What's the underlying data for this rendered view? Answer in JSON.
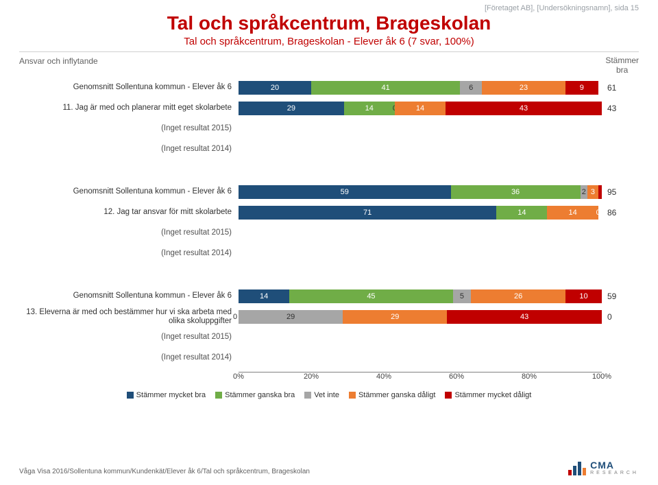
{
  "header_right": "[Företaget AB], [Undersökningsnamn], sida 15",
  "title": "Tal och språkcentrum, Brageskolan",
  "subtitle": "Tal och språkcentrum, Brageskolan - Elever åk 6 (7 svar, 100%)",
  "section_label": "Ansvar och inflytande",
  "score_header_top": "Stämmer",
  "score_header_bot": "bra",
  "colors": {
    "c1": "#1f4e79",
    "c2": "#70ad47",
    "c3": "#a6a6a6",
    "c4": "#ed7d31",
    "c5": "#c00000",
    "brand": "#c00000",
    "bg": "#ffffff"
  },
  "rows": [
    {
      "label": "Genomsnitt Sollentuna kommun - Elever åk 6",
      "score": "61",
      "segs": [
        {
          "v": 20,
          "c": "c1",
          "t": "#ffffff"
        },
        {
          "v": 41,
          "c": "c2",
          "t": "#ffffff"
        },
        {
          "v": 6,
          "c": "c3",
          "t": "#303030"
        },
        {
          "v": 23,
          "c": "c4",
          "t": "#ffffff"
        },
        {
          "v": 9,
          "c": "c5",
          "t": "#ffffff"
        }
      ]
    },
    {
      "label": "11. Jag är med och planerar mitt eget skolarbete",
      "score": "43",
      "segs": [
        {
          "v": 29,
          "c": "c1",
          "t": "#ffffff"
        },
        {
          "v": 14,
          "c": "c2",
          "t": "#ffffff"
        },
        {
          "v": 0,
          "c": "c3",
          "t": "#303030",
          "show": "0"
        },
        {
          "v": 14,
          "c": "c4",
          "t": "#ffffff"
        },
        {
          "v": 43,
          "c": "c5",
          "t": "#ffffff"
        }
      ]
    },
    {
      "label": "(Inget resultat 2015)",
      "noresult": true
    },
    {
      "label": "(Inget resultat 2014)",
      "noresult": true
    },
    {
      "gap": true
    },
    {
      "label": "Genomsnitt Sollentuna kommun - Elever åk 6",
      "score": "95",
      "segs": [
        {
          "v": 59,
          "c": "c1",
          "t": "#ffffff"
        },
        {
          "v": 36,
          "c": "c2",
          "t": "#ffffff"
        },
        {
          "v": 2,
          "c": "c3",
          "t": "#303030"
        },
        {
          "v": 3,
          "c": "c4",
          "t": "#ffffff"
        },
        {
          "v": 1,
          "c": "c5",
          "t": "#ffffff",
          "hide": true
        }
      ]
    },
    {
      "label": "12. Jag tar ansvar för mitt skolarbete",
      "score": "86",
      "segs": [
        {
          "v": 71,
          "c": "c1",
          "t": "#ffffff"
        },
        {
          "v": 14,
          "c": "c2",
          "t": "#ffffff"
        },
        {
          "v": 14,
          "c": "c4",
          "t": "#ffffff"
        },
        {
          "v": 0,
          "c": "c5",
          "t": "#ffffff",
          "show": "0"
        }
      ]
    },
    {
      "label": "(Inget resultat 2015)",
      "noresult": true
    },
    {
      "label": "(Inget resultat 2014)",
      "noresult": true
    },
    {
      "gap": true
    },
    {
      "label": "Genomsnitt Sollentuna kommun - Elever åk 6",
      "score": "59",
      "segs": [
        {
          "v": 14,
          "c": "c1",
          "t": "#ffffff"
        },
        {
          "v": 45,
          "c": "c2",
          "t": "#ffffff"
        },
        {
          "v": 5,
          "c": "c3",
          "t": "#303030"
        },
        {
          "v": 26,
          "c": "c4",
          "t": "#ffffff"
        },
        {
          "v": 10,
          "c": "c5",
          "t": "#ffffff"
        }
      ]
    },
    {
      "label": "13. Eleverna är med och bestämmer hur vi ska arbeta med olika skoluppgifter",
      "score": "0",
      "segs": [
        {
          "v": 0,
          "c": "c1",
          "t": "#ffffff",
          "hide": true
        },
        {
          "v": 0,
          "c": "c2",
          "t": "#ffffff",
          "show": "0",
          "offset": true
        },
        {
          "v": 29,
          "c": "c3",
          "t": "#303030"
        },
        {
          "v": 29,
          "c": "c4",
          "t": "#ffffff"
        },
        {
          "v": 43,
          "c": "c5",
          "t": "#ffffff"
        }
      ]
    },
    {
      "label": "(Inget resultat 2015)",
      "noresult": true
    },
    {
      "label": "(Inget resultat 2014)",
      "noresult": true
    }
  ],
  "axis": [
    "0%",
    "20%",
    "40%",
    "60%",
    "80%",
    "100%"
  ],
  "legend": [
    {
      "c": "c1",
      "t": "Stämmer mycket bra"
    },
    {
      "c": "c2",
      "t": "Stämmer ganska bra"
    },
    {
      "c": "c3",
      "t": "Vet inte"
    },
    {
      "c": "c4",
      "t": "Stämmer ganska dåligt"
    },
    {
      "c": "c5",
      "t": "Stämmer mycket dåligt"
    }
  ],
  "footer_left": "Våga Visa 2016/Sollentuna kommun/Kundenkät/Elever åk 6/Tal och språkcentrum, Brageskolan",
  "logo_text": "CMA",
  "logo_sub": "RESEARCH"
}
